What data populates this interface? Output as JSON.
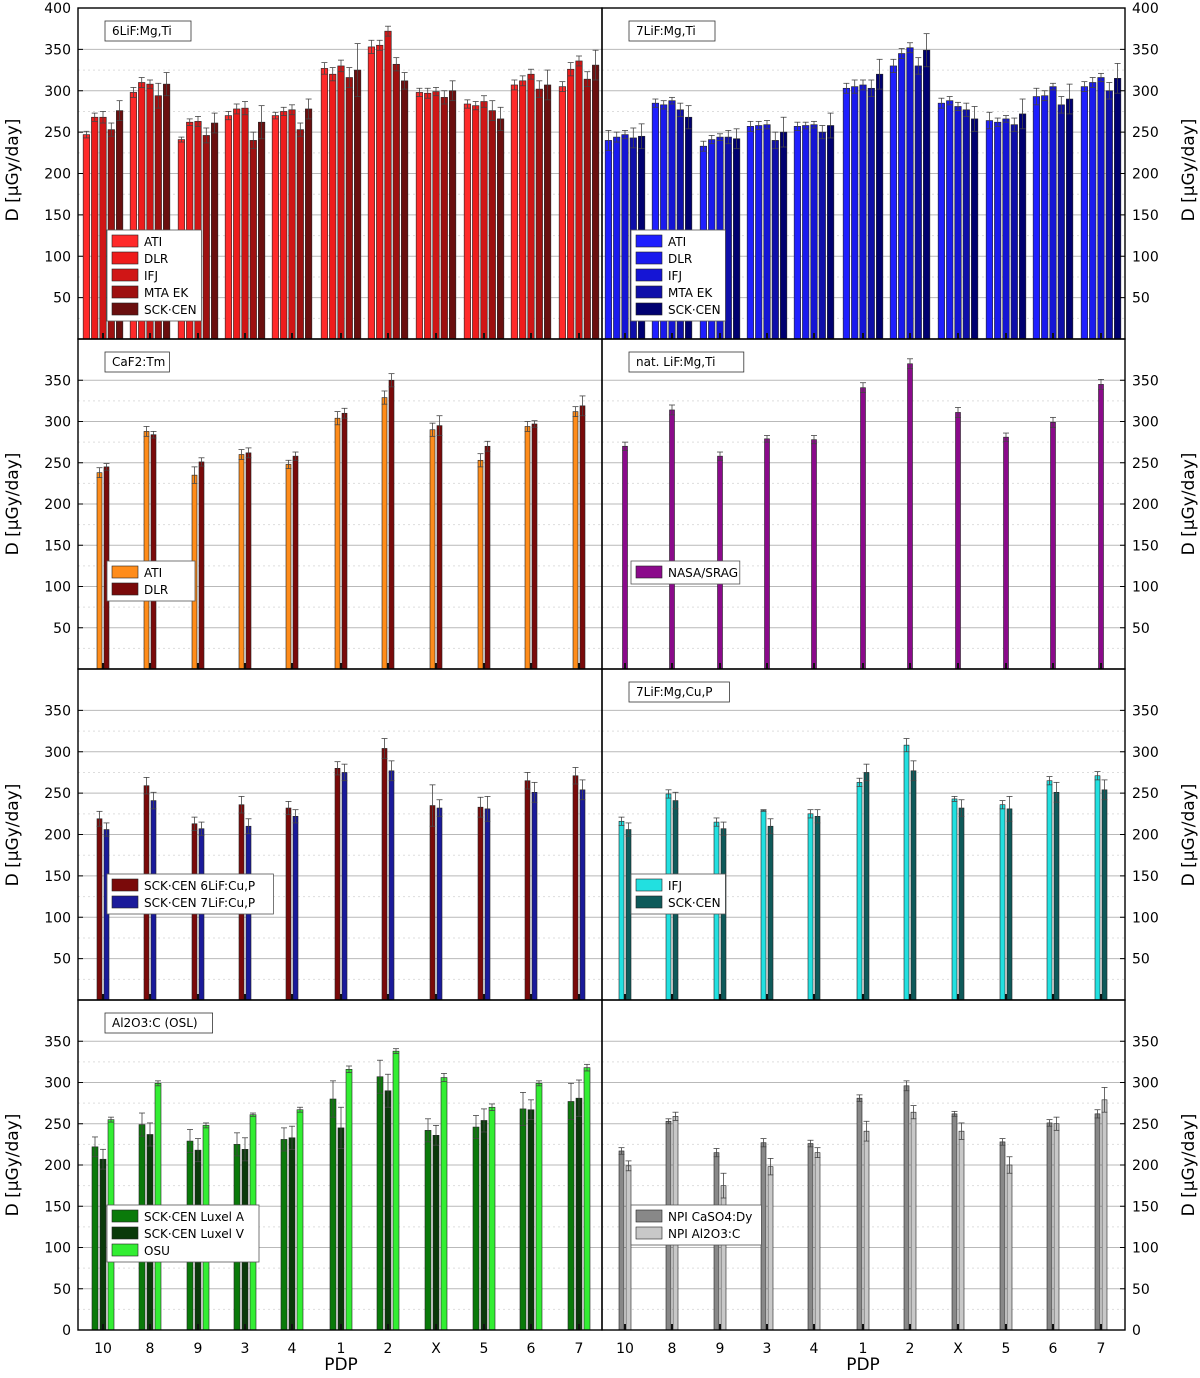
{
  "figure": {
    "y_label": "D [µGy/day]",
    "x_label": "PDP",
    "categories": [
      "10",
      "8",
      "9",
      "3",
      "4",
      "1",
      "2",
      "X",
      "5",
      "6",
      "7"
    ],
    "y_ticks": [
      50,
      100,
      150,
      200,
      250,
      300,
      350,
      400
    ]
  },
  "chart_data": [
    {
      "type": "bar",
      "title": "6LiF:Mg,Ti",
      "categories": [
        "10",
        "8",
        "9",
        "3",
        "4",
        "1",
        "2",
        "X",
        "5",
        "6",
        "7"
      ],
      "ylim": [
        0,
        400
      ],
      "ylabel": "D [µGy/day]",
      "legend_position": "lower-left",
      "error_bars": true,
      "series": [
        {
          "name": "ATI",
          "color": "#ff2a2a",
          "values": [
            247,
            298,
            241,
            270,
            270,
            327,
            353,
            298,
            284,
            307,
            305
          ],
          "errors": [
            4,
            6,
            3,
            5,
            4,
            7,
            8,
            5,
            5,
            6,
            6
          ]
        },
        {
          "name": "DLR",
          "color": "#ee1c1c",
          "values": [
            268,
            310,
            262,
            278,
            275,
            320,
            355,
            297,
            282,
            312,
            326
          ],
          "errors": [
            5,
            6,
            4,
            6,
            5,
            8,
            6,
            6,
            5,
            6,
            8
          ]
        },
        {
          "name": "IFJ",
          "color": "#d01616",
          "values": [
            268,
            308,
            263,
            279,
            277,
            330,
            372,
            299,
            287,
            320,
            336
          ],
          "errors": [
            7,
            5,
            6,
            8,
            6,
            7,
            6,
            5,
            7,
            6,
            6
          ]
        },
        {
          "name": "MTA EK",
          "color": "#9e1010",
          "values": [
            253,
            294,
            246,
            240,
            253,
            316,
            332,
            292,
            276,
            302,
            314
          ],
          "errors": [
            8,
            15,
            9,
            10,
            8,
            12,
            8,
            8,
            12,
            10,
            9
          ]
        },
        {
          "name": "SCK·CEN",
          "color": "#6a0f0f",
          "values": [
            276,
            308,
            261,
            262,
            278,
            325,
            312,
            300,
            266,
            307,
            331
          ],
          "errors": [
            12,
            14,
            12,
            20,
            12,
            32,
            10,
            12,
            14,
            18,
            18
          ]
        }
      ]
    },
    {
      "type": "bar",
      "title": "7LiF:Mg,Ti",
      "categories": [
        "10",
        "8",
        "9",
        "3",
        "4",
        "1",
        "2",
        "X",
        "5",
        "6",
        "7"
      ],
      "ylim": [
        0,
        400
      ],
      "ylabel": "D [µGy/day]",
      "legend_position": "lower-left",
      "error_bars": true,
      "series": [
        {
          "name": "ATI",
          "color": "#1f1fff",
          "values": [
            240,
            285,
            233,
            257,
            257,
            303,
            330,
            285,
            264,
            293,
            305
          ],
          "errors": [
            12,
            5,
            6,
            6,
            5,
            6,
            8,
            6,
            10,
            10,
            6
          ]
        },
        {
          "name": "DLR",
          "color": "#1a1aee",
          "values": [
            244,
            283,
            241,
            258,
            258,
            305,
            345,
            288,
            262,
            294,
            310
          ],
          "errors": [
            6,
            5,
            5,
            5,
            4,
            8,
            6,
            5,
            5,
            6,
            6
          ]
        },
        {
          "name": "IFJ",
          "color": "#1515d5",
          "values": [
            247,
            288,
            244,
            259,
            259,
            307,
            352,
            281,
            266,
            305,
            316
          ],
          "errors": [
            5,
            4,
            4,
            5,
            4,
            6,
            6,
            5,
            4,
            4,
            5
          ]
        },
        {
          "name": "MTA EK",
          "color": "#0f0faa",
          "values": [
            243,
            277,
            244,
            240,
            250,
            303,
            330,
            277,
            259,
            283,
            300
          ],
          "errors": [
            12,
            8,
            8,
            10,
            8,
            10,
            10,
            8,
            8,
            10,
            10
          ]
        },
        {
          "name": "SCK·CEN",
          "color": "#000070",
          "values": [
            245,
            268,
            242,
            250,
            258,
            320,
            349,
            266,
            272,
            290,
            315
          ],
          "errors": [
            15,
            14,
            12,
            18,
            15,
            18,
            20,
            15,
            18,
            18,
            18
          ]
        }
      ]
    },
    {
      "type": "bar",
      "title": "CaF2:Tm",
      "categories": [
        "10",
        "8",
        "9",
        "3",
        "4",
        "1",
        "2",
        "X",
        "5",
        "6",
        "7"
      ],
      "ylim": [
        0,
        400
      ],
      "ylabel": "D [µGy/day]",
      "legend_position": "lower-left",
      "error_bars": true,
      "series": [
        {
          "name": "ATI",
          "color": "#ff8c1a",
          "values": [
            238,
            288,
            235,
            260,
            248,
            304,
            329,
            290,
            253,
            294,
            312
          ],
          "errors": [
            6,
            6,
            10,
            6,
            5,
            8,
            8,
            8,
            8,
            6,
            6
          ]
        },
        {
          "name": "DLR",
          "color": "#7a0a0a",
          "values": [
            245,
            284,
            251,
            262,
            258,
            310,
            350,
            295,
            270,
            297,
            319
          ],
          "errors": [
            4,
            4,
            5,
            6,
            5,
            6,
            8,
            12,
            6,
            4,
            12
          ]
        }
      ]
    },
    {
      "type": "bar",
      "title": "nat. LiF:Mg,Ti",
      "categories": [
        "10",
        "8",
        "9",
        "3",
        "4",
        "1",
        "2",
        "X",
        "5",
        "6",
        "7"
      ],
      "ylim": [
        0,
        400
      ],
      "ylabel": "D [µGy/day]",
      "legend_position": "lower-left",
      "error_bars": true,
      "series": [
        {
          "name": "NASA/SRAG",
          "color": "#8b0a8b",
          "values": [
            270,
            314,
            258,
            279,
            278,
            341,
            370,
            311,
            281,
            299,
            345
          ],
          "errors": [
            5,
            6,
            5,
            4,
            5,
            6,
            6,
            6,
            5,
            6,
            6
          ]
        }
      ]
    },
    {
      "type": "bar",
      "title": "",
      "categories": [
        "10",
        "8",
        "9",
        "3",
        "4",
        "1",
        "2",
        "X",
        "5",
        "6",
        "7"
      ],
      "ylim": [
        0,
        400
      ],
      "ylabel": "D [µGy/day]",
      "legend_position": "lower-left",
      "error_bars": true,
      "series": [
        {
          "name": "SCK·CEN 6LiF:Cu,P",
          "color": "#7a0a0a",
          "values": [
            219,
            259,
            213,
            236,
            232,
            280,
            304,
            235,
            233,
            265,
            271
          ],
          "errors": [
            9,
            10,
            8,
            10,
            8,
            8,
            12,
            25,
            12,
            10,
            10
          ]
        },
        {
          "name": "SCK·CEN 7LiF:Cu,P",
          "color": "#1a1a9a",
          "values": [
            206,
            241,
            207,
            210,
            222,
            275,
            277,
            232,
            231,
            251,
            254
          ],
          "errors": [
            8,
            10,
            8,
            9,
            8,
            10,
            12,
            10,
            15,
            12,
            12
          ]
        }
      ]
    },
    {
      "type": "bar",
      "title": "7LiF:Mg,Cu,P",
      "categories": [
        "10",
        "8",
        "9",
        "3",
        "4",
        "1",
        "2",
        "X",
        "5",
        "6",
        "7"
      ],
      "ylim": [
        0,
        400
      ],
      "ylabel": "D [µGy/day]",
      "legend_position": "lower-left",
      "error_bars": true,
      "series": [
        {
          "name": "IFJ",
          "color": "#22e0e0",
          "values": [
            216,
            249,
            215,
            229,
            225,
            263,
            308,
            243,
            236,
            265,
            271
          ],
          "errors": [
            5,
            5,
            5,
            1,
            5,
            5,
            8,
            3,
            5,
            5,
            5
          ]
        },
        {
          "name": "SCK·CEN",
          "color": "#0e5a5a",
          "values": [
            206,
            241,
            207,
            210,
            222,
            275,
            277,
            232,
            231,
            251,
            254
          ],
          "errors": [
            8,
            10,
            8,
            9,
            8,
            10,
            12,
            10,
            15,
            12,
            12
          ]
        }
      ]
    },
    {
      "type": "bar",
      "title": "Al2O3:C (OSL)",
      "categories": [
        "10",
        "8",
        "9",
        "3",
        "4",
        "1",
        "2",
        "X",
        "5",
        "6",
        "7"
      ],
      "ylim": [
        0,
        400
      ],
      "ylabel": "D [µGy/day]",
      "legend_position": "lower-left",
      "error_bars": true,
      "series": [
        {
          "name": "SCK·CEN Luxel A",
          "color": "#0a7a0a",
          "values": [
            222,
            249,
            229,
            225,
            231,
            280,
            307,
            242,
            246,
            268,
            277
          ],
          "errors": [
            12,
            14,
            14,
            14,
            14,
            22,
            20,
            14,
            14,
            20,
            22
          ]
        },
        {
          "name": "SCK·CEN Luxel V",
          "color": "#0a3a0a",
          "values": [
            207,
            237,
            218,
            219,
            233,
            245,
            290,
            236,
            254,
            267,
            281
          ],
          "errors": [
            12,
            14,
            14,
            14,
            14,
            25,
            20,
            12,
            14,
            12,
            22
          ]
        },
        {
          "name": "OSU",
          "color": "#33ee33",
          "values": [
            255,
            299,
            248,
            261,
            267,
            316,
            338,
            306,
            270,
            299,
            318
          ],
          "errors": [
            3,
            3,
            3,
            2,
            3,
            4,
            3,
            5,
            4,
            3,
            4
          ]
        }
      ]
    },
    {
      "type": "bar",
      "title": "",
      "categories": [
        "10",
        "8",
        "9",
        "3",
        "4",
        "1",
        "2",
        "X",
        "5",
        "6",
        "7"
      ],
      "ylim": [
        0,
        400
      ],
      "ylabel": "D [µGy/day]",
      "legend_position": "lower-left",
      "error_bars": true,
      "series": [
        {
          "name": "NPI CaSO4:Dy",
          "color": "#888888",
          "values": [
            217,
            253,
            215,
            227,
            226,
            281,
            296,
            262,
            228,
            251,
            262
          ],
          "errors": [
            4,
            3,
            5,
            5,
            4,
            4,
            6,
            3,
            4,
            4,
            5
          ]
        },
        {
          "name": "NPI Al2O3:C",
          "color": "#c8c8c8",
          "values": [
            199,
            259,
            175,
            198,
            215,
            241,
            264,
            241,
            200,
            250,
            279
          ],
          "errors": [
            6,
            5,
            15,
            10,
            6,
            12,
            8,
            10,
            10,
            8,
            15
          ]
        }
      ]
    }
  ]
}
